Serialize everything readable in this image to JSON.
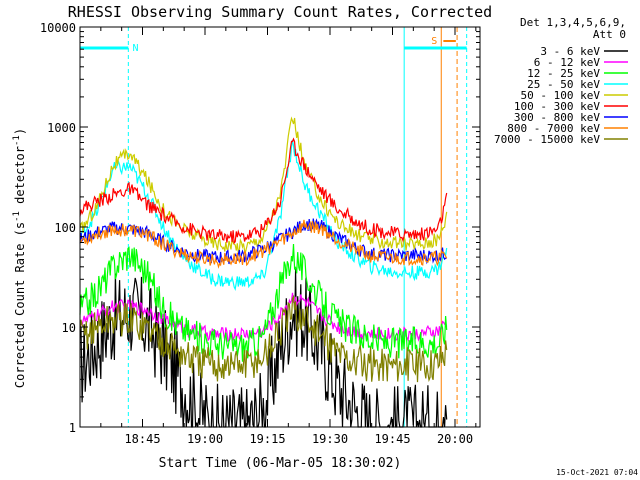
{
  "chart_data": {
    "type": "line",
    "title": "RHESSI Observing Summary Count Rates, Corrected",
    "xlabel": "Start Time (06-Mar-05 18:30:02)",
    "ylabel_main": "Corrected Count Rate (s",
    "ylabel_sup1": "-1",
    "ylabel_mid": " detector",
    "ylabel_sup2": "-1",
    "ylabel_end": ")",
    "yscale": "log",
    "ylim": [
      1,
      10000
    ],
    "xlim_minutes": [
      0,
      96
    ],
    "x_ticks": [
      {
        "label": "18:45",
        "m": 15
      },
      {
        "label": "19:00",
        "m": 30
      },
      {
        "label": "19:15",
        "m": 45
      },
      {
        "label": "19:30",
        "m": 60
      },
      {
        "label": "19:45",
        "m": 75
      },
      {
        "label": "20:00",
        "m": 90
      }
    ],
    "y_ticks": [
      {
        "label": "1",
        "v": 1
      },
      {
        "label": "10",
        "v": 10
      },
      {
        "label": "100",
        "v": 100
      },
      {
        "label": "1000",
        "v": 1000
      },
      {
        "label": "10000",
        "v": 10000
      }
    ],
    "legend_header": [
      "Det 1,3,4,5,6,9,",
      "Att 0"
    ],
    "legend_position": "right",
    "timestamp": "15-Oct-2021 07:04",
    "flags": [
      {
        "label": "N",
        "color": "#00ffff"
      },
      {
        "label": "S",
        "color": "#ff8000"
      }
    ],
    "series": [
      {
        "name": "3 - 6 keV",
        "color": "#000000",
        "x": [
          0,
          4,
          8,
          12,
          16,
          20,
          24,
          28,
          32,
          36,
          40,
          44,
          48,
          51,
          54,
          58,
          62,
          66,
          70,
          74,
          78,
          82,
          86,
          88
        ],
        "values": [
          4,
          7,
          12,
          14,
          11,
          6,
          3,
          1.5,
          1,
          1,
          1,
          1.5,
          6,
          15,
          12,
          6,
          2.5,
          1.5,
          1,
          1,
          1,
          1,
          1,
          3
        ]
      },
      {
        "name": "6 - 12 keV",
        "color": "#ff00ff",
        "x": [
          0,
          4,
          8,
          12,
          16,
          20,
          24,
          28,
          32,
          36,
          40,
          44,
          48,
          51,
          54,
          58,
          62,
          66,
          70,
          74,
          78,
          82,
          86,
          88
        ],
        "values": [
          11,
          13,
          16,
          16,
          15,
          12,
          10,
          9,
          8.5,
          8.5,
          8.5,
          9,
          13,
          20,
          18,
          13,
          10,
          9,
          8.5,
          8.5,
          8.5,
          8.5,
          9,
          11
        ]
      },
      {
        "name": "12 - 25 keV",
        "color": "#00ff00",
        "x": [
          0,
          4,
          8,
          12,
          16,
          20,
          24,
          28,
          32,
          36,
          40,
          44,
          48,
          51,
          54,
          58,
          62,
          66,
          70,
          74,
          78,
          82,
          86,
          88
        ],
        "values": [
          15,
          22,
          40,
          55,
          35,
          15,
          10,
          8,
          7,
          6.5,
          6.5,
          8,
          25,
          55,
          35,
          18,
          11,
          9,
          7.5,
          7,
          7,
          7,
          7,
          10
        ]
      },
      {
        "name": "25 - 50 keV",
        "color": "#00ffff",
        "x": [
          0,
          4,
          8,
          12,
          16,
          20,
          24,
          28,
          32,
          36,
          40,
          44,
          48,
          51,
          54,
          58,
          62,
          66,
          70,
          74,
          78,
          82,
          86,
          88
        ],
        "values": [
          80,
          140,
          380,
          400,
          220,
          100,
          55,
          38,
          30,
          28,
          28,
          32,
          120,
          700,
          260,
          130,
          70,
          50,
          40,
          36,
          35,
          35,
          38,
          60
        ]
      },
      {
        "name": "50 - 100 keV",
        "color": "#cccc00",
        "x": [
          0,
          4,
          8,
          12,
          16,
          20,
          24,
          28,
          32,
          36,
          40,
          44,
          48,
          51,
          54,
          58,
          62,
          66,
          70,
          74,
          78,
          82,
          86,
          88
        ],
        "values": [
          90,
          160,
          420,
          550,
          300,
          150,
          100,
          80,
          70,
          65,
          65,
          80,
          200,
          1300,
          400,
          180,
          110,
          85,
          75,
          70,
          68,
          68,
          75,
          130
        ]
      },
      {
        "name": "100 - 300 keV",
        "color": "#ff0000",
        "x": [
          0,
          4,
          8,
          12,
          16,
          20,
          24,
          28,
          32,
          36,
          40,
          44,
          48,
          51,
          54,
          58,
          62,
          66,
          70,
          74,
          78,
          82,
          86,
          88
        ],
        "values": [
          150,
          180,
          210,
          240,
          170,
          130,
          105,
          90,
          82,
          80,
          82,
          95,
          180,
          700,
          400,
          230,
          150,
          115,
          95,
          88,
          85,
          85,
          95,
          190
        ]
      },
      {
        "name": "300 - 800 keV",
        "color": "#0000ff",
        "x": [
          0,
          4,
          8,
          12,
          16,
          20,
          24,
          28,
          32,
          36,
          40,
          44,
          48,
          51,
          54,
          58,
          62,
          66,
          70,
          74,
          78,
          82,
          86,
          88
        ],
        "values": [
          75,
          88,
          98,
          96,
          88,
          70,
          58,
          52,
          50,
          50,
          52,
          60,
          75,
          90,
          108,
          100,
          78,
          62,
          54,
          52,
          52,
          52,
          52,
          55
        ]
      },
      {
        "name": "800 - 7000 keV",
        "color": "#ff8000",
        "x": [
          0,
          4,
          8,
          12,
          16,
          20,
          24,
          28,
          32,
          36,
          40,
          44,
          48,
          51,
          54,
          58,
          62,
          66,
          70,
          74,
          78,
          82,
          86,
          88
        ],
        "values": [
          72,
          85,
          95,
          93,
          85,
          67,
          55,
          49,
          47,
          47,
          49,
          57,
          72,
          88,
          105,
          97,
          75,
          59,
          51,
          49,
          49,
          49,
          49,
          52
        ]
      },
      {
        "name": "7000 - 15000 keV",
        "color": "#808000",
        "x": [
          0,
          4,
          8,
          12,
          16,
          20,
          24,
          28,
          32,
          36,
          40,
          44,
          48,
          51,
          54,
          58,
          62,
          66,
          70,
          74,
          78,
          82,
          86,
          88
        ],
        "values": [
          8,
          10,
          12,
          12,
          10,
          7.5,
          5.5,
          4.5,
          4.2,
          4.2,
          4.2,
          5,
          9,
          14,
          12,
          8,
          5.5,
          4.5,
          4.2,
          4.2,
          4.2,
          4.2,
          4.5,
          6
        ]
      }
    ]
  }
}
